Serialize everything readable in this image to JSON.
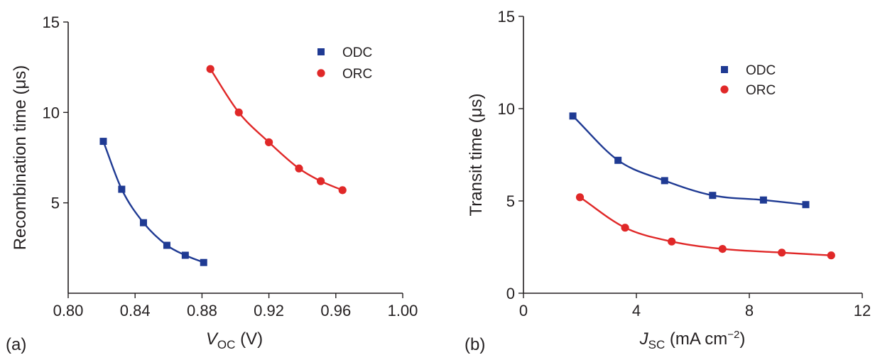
{
  "figure": {
    "background": "#ffffff",
    "axis_color": "#231f20"
  },
  "chart_data": [
    {
      "type": "scatter",
      "panel_label": "(a)",
      "xlabel": {
        "italic": "V",
        "sub": "OC",
        "rest": " (V)"
      },
      "ylabel": "Recombination time (μs)",
      "xlim": [
        0.8,
        1.0
      ],
      "ylim": [
        0,
        15
      ],
      "x_ticks": [
        0.8,
        0.84,
        0.88,
        0.92,
        0.96,
        1.0
      ],
      "x_tick_labels": [
        "0.80",
        "0.84",
        "0.88",
        "0.92",
        "0.96",
        "1.00"
      ],
      "y_ticks": [
        5,
        10,
        15
      ],
      "y_tick_labels": [
        "5",
        "10",
        "15"
      ],
      "grid": false,
      "legend_position": "top-right",
      "series": [
        {
          "name": "ODC",
          "marker": "square",
          "color": "#1f3a93",
          "points": [
            [
              0.821,
              8.4
            ],
            [
              0.832,
              5.75
            ],
            [
              0.845,
              3.9
            ],
            [
              0.859,
              2.65
            ],
            [
              0.87,
              2.1
            ],
            [
              0.881,
              1.7
            ]
          ]
        },
        {
          "name": "ORC",
          "marker": "circle",
          "color": "#e02828",
          "points": [
            [
              0.885,
              12.4
            ],
            [
              0.902,
              10.0
            ],
            [
              0.92,
              8.35
            ],
            [
              0.938,
              6.9
            ],
            [
              0.951,
              6.2
            ],
            [
              0.964,
              5.7
            ]
          ]
        }
      ]
    },
    {
      "type": "scatter",
      "panel_label": "(b)",
      "xlabel": {
        "italic": "J",
        "sub": "SC",
        "rest": " (mA cm",
        "sup": "−2",
        "end": ")"
      },
      "ylabel": "Transit time (μs)",
      "xlim": [
        0,
        12
      ],
      "ylim": [
        0,
        15
      ],
      "x_ticks": [
        0,
        4,
        8,
        12
      ],
      "x_tick_labels": [
        "0",
        "4",
        "8",
        "12"
      ],
      "y_ticks": [
        0,
        5,
        10,
        15
      ],
      "y_tick_labels": [
        "0",
        "5",
        "10",
        "15"
      ],
      "grid": false,
      "legend_position": "top-right",
      "series": [
        {
          "name": "ODC",
          "marker": "square",
          "color": "#1f3a93",
          "points": [
            [
              1.75,
              9.6
            ],
            [
              3.35,
              7.2
            ],
            [
              5.0,
              6.1
            ],
            [
              6.7,
              5.3
            ],
            [
              8.5,
              5.05
            ],
            [
              10.0,
              4.8
            ]
          ]
        },
        {
          "name": "ORC",
          "marker": "circle",
          "color": "#e02828",
          "points": [
            [
              2.0,
              5.2
            ],
            [
              3.6,
              3.55
            ],
            [
              5.25,
              2.8
            ],
            [
              7.05,
              2.4
            ],
            [
              9.15,
              2.2
            ],
            [
              10.9,
              2.05
            ]
          ]
        }
      ]
    }
  ]
}
